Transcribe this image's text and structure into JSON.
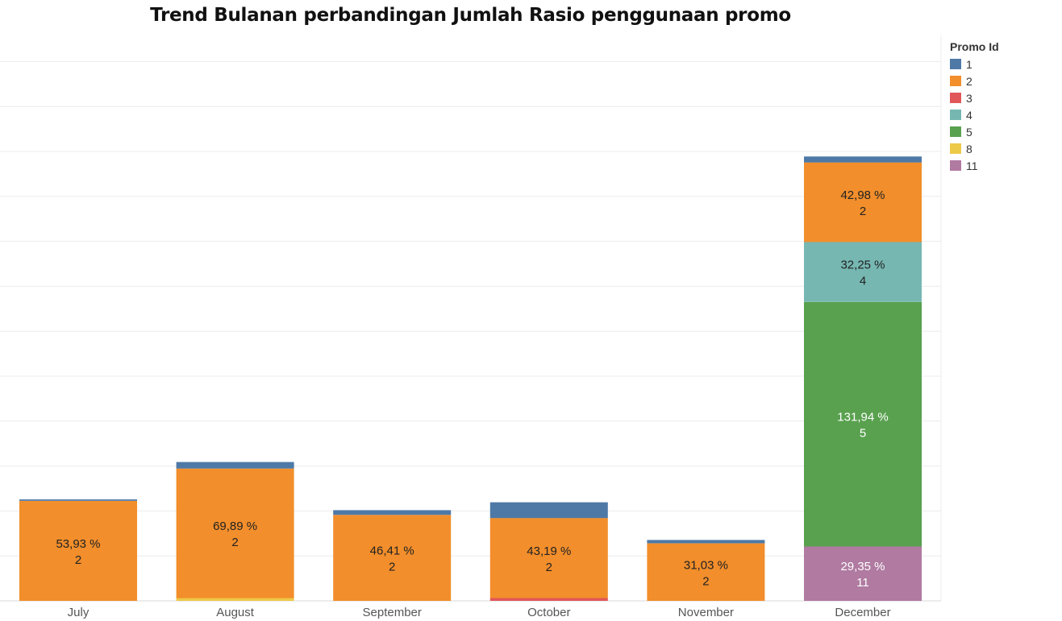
{
  "chart_data": {
    "type": "bar",
    "stacked": true,
    "title": "Trend Bulanan perbandingan Jumlah Rasio penggunaan promo",
    "xlabel": "",
    "ylabel": "",
    "categories": [
      "July",
      "August",
      "September",
      "October",
      "November",
      "December"
    ],
    "ylim": [
      0,
      305
    ],
    "grid": true,
    "legend_title": "Promo Id",
    "legend_position": "top-right",
    "series": [
      {
        "name": "11",
        "color": "#b07aa1",
        "values": [
          0,
          0,
          0,
          0,
          0,
          29.35
        ]
      },
      {
        "name": "8",
        "color": "#edc948",
        "values": [
          0,
          1.5,
          0,
          0,
          0,
          0
        ]
      },
      {
        "name": "3",
        "color": "#e15759",
        "values": [
          0,
          0,
          0,
          1.5,
          0,
          0
        ]
      },
      {
        "name": "5",
        "color": "#59a14f",
        "values": [
          0,
          0,
          0,
          0,
          0,
          131.94
        ]
      },
      {
        "name": "4",
        "color": "#76b7b2",
        "values": [
          0,
          0,
          0,
          0,
          0,
          32.25
        ]
      },
      {
        "name": "2",
        "color": "#f28e2b",
        "values": [
          53.93,
          69.89,
          46.41,
          43.19,
          31.03,
          42.98
        ]
      },
      {
        "name": "1",
        "color": "#4e79a7",
        "values": [
          0.8,
          3.5,
          2.5,
          8.5,
          1.8,
          3.2
        ]
      }
    ],
    "labels": [
      {
        "category": "July",
        "series": "2",
        "pct": "53,93 %",
        "id": "2"
      },
      {
        "category": "August",
        "series": "2",
        "pct": "69,89 %",
        "id": "2"
      },
      {
        "category": "September",
        "series": "2",
        "pct": "46,41 %",
        "id": "2"
      },
      {
        "category": "October",
        "series": "2",
        "pct": "43,19 %",
        "id": "2"
      },
      {
        "category": "November",
        "series": "2",
        "pct": "31,03 %",
        "id": "2"
      },
      {
        "category": "December",
        "series": "2",
        "pct": "42,98 %",
        "id": "2"
      },
      {
        "category": "December",
        "series": "4",
        "pct": "32,25 %",
        "id": "4"
      },
      {
        "category": "December",
        "series": "5",
        "pct": "131,94 %",
        "id": "5"
      },
      {
        "category": "December",
        "series": "11",
        "pct": "29,35 %",
        "id": "11"
      }
    ]
  },
  "legend": {
    "title": "Promo Id",
    "items": [
      {
        "label": "1",
        "color": "#4e79a7"
      },
      {
        "label": "2",
        "color": "#f28e2b"
      },
      {
        "label": "3",
        "color": "#e15759"
      },
      {
        "label": "4",
        "color": "#76b7b2"
      },
      {
        "label": "5",
        "color": "#59a14f"
      },
      {
        "label": "8",
        "color": "#edc948"
      },
      {
        "label": "11",
        "color": "#b07aa1"
      }
    ]
  }
}
